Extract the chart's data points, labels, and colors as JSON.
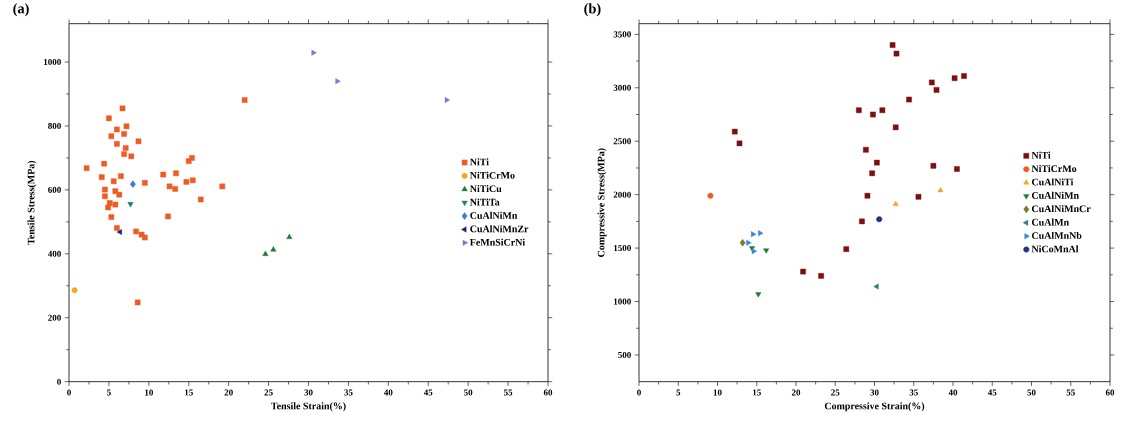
{
  "chart_data": [
    {
      "type": "scatter",
      "title": "(a)",
      "xlabel": "Tensile Strain(%)",
      "ylabel": "Tensile Stress(MPa)",
      "xlim": [
        0,
        60
      ],
      "xticks": [
        0,
        5,
        10,
        15,
        20,
        25,
        30,
        35,
        40,
        45,
        50,
        55,
        60
      ],
      "ylim": [
        0,
        1120
      ],
      "yticks": [
        0,
        200,
        400,
        600,
        800,
        1000
      ],
      "legend": "right",
      "grid": false,
      "series": [
        {
          "name": "NiTi",
          "color": "#f05a23",
          "marker": "square",
          "x": [
            6.7,
            5.0,
            22.0,
            6.0,
            7.2,
            6.9,
            5.3,
            6.0,
            8.7,
            7.1,
            6.9,
            7.8,
            2.2,
            4.4,
            4.1,
            6.5,
            5.6,
            4.5,
            5.8,
            6.3,
            4.5,
            5.1,
            5.8,
            4.9,
            5.3,
            6.0,
            8.4,
            9.1,
            9.5,
            8.6,
            9.5,
            11.8,
            13.4,
            12.6,
            13.3,
            14.7,
            15.5,
            15.0,
            15.4,
            19.2,
            16.5,
            12.4
          ],
          "values": [
            855,
            824,
            881,
            789,
            799,
            775,
            768,
            744,
            752,
            731,
            712,
            705,
            668,
            682,
            640,
            643,
            627,
            601,
            596,
            585,
            580,
            559,
            554,
            545,
            515,
            481,
            470,
            460,
            451,
            248,
            622,
            648,
            652,
            611,
            603,
            625,
            630,
            690,
            700,
            611,
            570,
            517
          ]
        },
        {
          "name": "NiTiCrMo",
          "color": "#f5a623",
          "marker": "circle",
          "x": [
            0.7
          ],
          "values": [
            286
          ]
        },
        {
          "name": "NiTiCu",
          "color": "#1e7d32",
          "marker": "triangle",
          "x": [
            24.6,
            25.6,
            27.6
          ],
          "values": [
            399,
            413,
            452
          ]
        },
        {
          "name": "NiTiTa",
          "color": "#1a7f7a",
          "marker": "triangle-down",
          "x": [
            7.7
          ],
          "values": [
            556
          ]
        },
        {
          "name": "CuAlNiMn",
          "color": "#3d7fcc",
          "marker": "diamond",
          "x": [
            8.0
          ],
          "values": [
            618
          ]
        },
        {
          "name": "CuAlNiMnZr",
          "color": "#1a237e",
          "marker": "triangle-left",
          "x": [
            6.4
          ],
          "values": [
            468
          ]
        },
        {
          "name": "FeMnSiCrNi",
          "color": "#7b7bcc",
          "marker": "triangle-right",
          "x": [
            30.6,
            33.6,
            47.3
          ],
          "values": [
            1029,
            940,
            881
          ]
        }
      ]
    },
    {
      "type": "scatter",
      "title": "(b)",
      "xlabel": "Compressive Strain(%)",
      "ylabel": "Compressive Stress(MPa)",
      "xlim": [
        0,
        60
      ],
      "xticks": [
        0,
        5,
        10,
        15,
        20,
        25,
        30,
        35,
        40,
        45,
        50,
        55,
        60
      ],
      "ylim": [
        250,
        3600
      ],
      "yticks": [
        500,
        1000,
        1500,
        2000,
        2500,
        3000,
        3500
      ],
      "legend": "right",
      "grid": false,
      "series": [
        {
          "name": "NiTi",
          "color": "#7b1010",
          "marker": "square",
          "x": [
            12.2,
            12.8,
            20.9,
            23.2,
            32.3,
            32.8,
            37.3,
            37.9,
            40.2,
            41.4,
            34.4,
            28.0,
            29.8,
            31.0,
            32.7,
            28.9,
            30.3,
            29.7,
            37.5,
            40.5,
            29.1,
            35.6,
            28.4,
            26.4
          ],
          "values": [
            2590,
            2480,
            1280,
            1240,
            3400,
            3320,
            3050,
            2980,
            3090,
            3110,
            2890,
            2790,
            2750,
            2790,
            2630,
            2420,
            2300,
            2200,
            2270,
            2240,
            1990,
            1980,
            1750,
            1490
          ]
        },
        {
          "name": "NiTiCrMo",
          "color": "#f05a23",
          "marker": "circle",
          "x": [
            9.1
          ],
          "values": [
            1990
          ]
        },
        {
          "name": "CuAlNiTi",
          "color": "#f5a623",
          "marker": "triangle",
          "x": [
            32.7,
            38.4
          ],
          "values": [
            1910,
            2040
          ]
        },
        {
          "name": "CuAlNiMn",
          "color": "#1e7d32",
          "marker": "triangle-down",
          "x": [
            16.2,
            15.2,
            14.4
          ],
          "values": [
            1480,
            1070,
            1500
          ]
        },
        {
          "name": "CuAlNiMnCr",
          "color": "#7a7a2a",
          "marker": "diamond",
          "x": [
            13.2
          ],
          "values": [
            1550
          ]
        },
        {
          "name": "CuAlMn",
          "color": "#2e7d7a",
          "marker": "triangle-left",
          "x": [
            30.3
          ],
          "values": [
            1140
          ]
        },
        {
          "name": "CuAlMnNb",
          "color": "#3a86d4",
          "marker": "triangle-right",
          "x": [
            14.5,
            15.4,
            13.9,
            14.6
          ],
          "values": [
            1630,
            1640,
            1550,
            1470
          ]
        },
        {
          "name": "NiCoMnAl",
          "color": "#23308a",
          "marker": "circle",
          "x": [
            30.6
          ],
          "values": [
            1770
          ]
        }
      ]
    }
  ]
}
